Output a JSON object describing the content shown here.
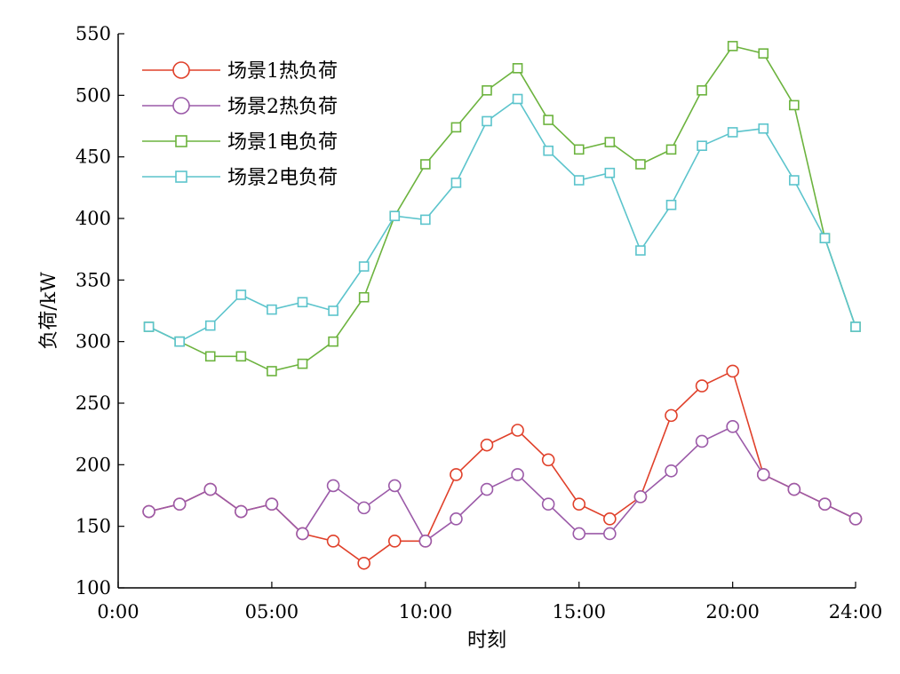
{
  "chart_data": {
    "type": "line",
    "xlabel": "时刻",
    "ylabel": "负荷/kW",
    "xlim": [
      0,
      24
    ],
    "ylim": [
      100,
      550
    ],
    "xticks": [
      {
        "value": 0,
        "label": "0:00"
      },
      {
        "value": 5,
        "label": "05:00"
      },
      {
        "value": 10,
        "label": "10:00"
      },
      {
        "value": 15,
        "label": "15:00"
      },
      {
        "value": 20,
        "label": "20:00"
      },
      {
        "value": 24,
        "label": "24:00"
      }
    ],
    "yticks": [
      100,
      150,
      200,
      250,
      300,
      350,
      400,
      450,
      500,
      550
    ],
    "grid": false,
    "legend_position": "top-left",
    "x": [
      1,
      2,
      3,
      4,
      5,
      6,
      7,
      8,
      9,
      10,
      11,
      12,
      13,
      14,
      15,
      16,
      17,
      18,
      19,
      20,
      21,
      22,
      23,
      24
    ],
    "series": [
      {
        "name": "场景1热负荷",
        "color": "#e0402a",
        "marker": "circle",
        "values": [
          162,
          168,
          180,
          162,
          168,
          144,
          138,
          120,
          138,
          138,
          192,
          216,
          228,
          204,
          168,
          156,
          174,
          240,
          264,
          276,
          192,
          180,
          168,
          156
        ]
      },
      {
        "name": "场景2热负荷",
        "color": "#9b5aa8",
        "marker": "circle",
        "values": [
          162,
          168,
          180,
          162,
          168,
          144,
          183,
          165,
          183,
          138,
          156,
          180,
          192,
          168,
          144,
          144,
          174,
          195,
          219,
          231,
          192,
          180,
          168,
          156
        ]
      },
      {
        "name": "场景1电负荷",
        "color": "#6cb33e",
        "marker": "square",
        "values": [
          312,
          300,
          288,
          288,
          276,
          282,
          300,
          336,
          402,
          444,
          474,
          504,
          522,
          480,
          456,
          462,
          444,
          456,
          504,
          540,
          534,
          492,
          384,
          312
        ]
      },
      {
        "name": "场景2电负荷",
        "color": "#5cc4cc",
        "marker": "square",
        "values": [
          312,
          300,
          313,
          338,
          326,
          332,
          325,
          361,
          402,
          399,
          429,
          479,
          497,
          455,
          431,
          437,
          374,
          411,
          459,
          470,
          473,
          431,
          384,
          312
        ]
      }
    ]
  }
}
